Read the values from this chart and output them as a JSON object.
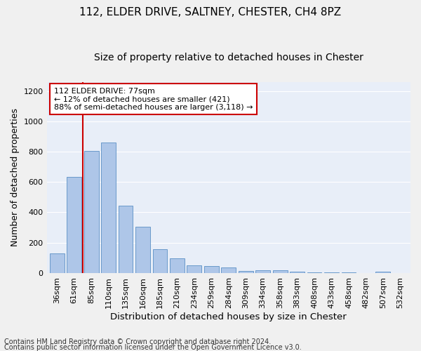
{
  "title1": "112, ELDER DRIVE, SALTNEY, CHESTER, CH4 8PZ",
  "title2": "Size of property relative to detached houses in Chester",
  "xlabel": "Distribution of detached houses by size in Chester",
  "ylabel": "Number of detached properties",
  "footer1": "Contains HM Land Registry data © Crown copyright and database right 2024.",
  "footer2": "Contains public sector information licensed under the Open Government Licence v3.0.",
  "categories": [
    "36sqm",
    "61sqm",
    "85sqm",
    "110sqm",
    "135sqm",
    "160sqm",
    "185sqm",
    "210sqm",
    "234sqm",
    "259sqm",
    "284sqm",
    "309sqm",
    "334sqm",
    "358sqm",
    "383sqm",
    "408sqm",
    "433sqm",
    "458sqm",
    "482sqm",
    "507sqm",
    "532sqm"
  ],
  "values": [
    130,
    635,
    805,
    860,
    445,
    305,
    155,
    95,
    50,
    45,
    35,
    15,
    20,
    20,
    10,
    5,
    5,
    5,
    0,
    10,
    0
  ],
  "bar_color": "#aec6e8",
  "bar_edge_color": "#5a8fc4",
  "vline_x": 1.52,
  "vline_color": "#cc0000",
  "annotation_text": "112 ELDER DRIVE: 77sqm\n← 12% of detached houses are smaller (421)\n88% of semi-detached houses are larger (3,118) →",
  "annotation_box_color": "#ffffff",
  "annotation_box_edge_color": "#cc0000",
  "ylim": [
    0,
    1260
  ],
  "yticks": [
    0,
    200,
    400,
    600,
    800,
    1000,
    1200
  ],
  "plot_bg_color": "#e8eef8",
  "grid_color": "#ffffff",
  "fig_bg_color": "#f0f0f0",
  "title1_fontsize": 11,
  "title2_fontsize": 10,
  "xlabel_fontsize": 9.5,
  "ylabel_fontsize": 9,
  "tick_fontsize": 8,
  "annot_fontsize": 8,
  "footer_fontsize": 7
}
